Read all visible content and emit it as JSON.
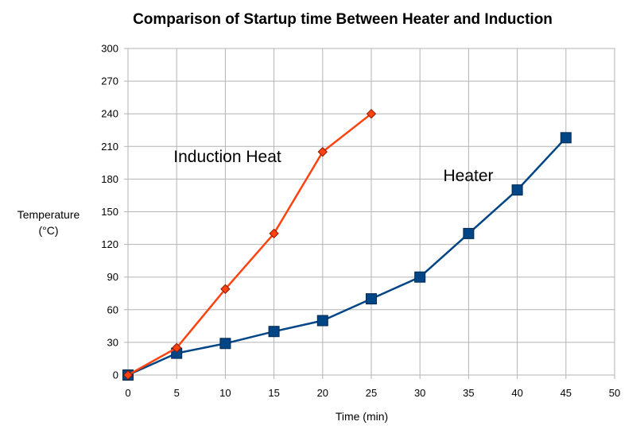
{
  "chart_data": {
    "type": "line",
    "title": "Comparison of Startup time Between Heater and Induction",
    "xlabel": "Time (min)",
    "ylabel_lines": [
      "Temperature",
      "(°C)"
    ],
    "xlim": [
      0,
      50
    ],
    "ylim": [
      0,
      300
    ],
    "x_ticks": [
      "0",
      "5",
      "10",
      "15",
      "20",
      "25",
      "30",
      "35",
      "40",
      "45",
      "50"
    ],
    "y_ticks": [
      "0",
      "30",
      "60",
      "90",
      "120",
      "150",
      "180",
      "210",
      "240",
      "270",
      "300"
    ],
    "grid": true,
    "legend": "none",
    "series": [
      {
        "name": "Induction Heat",
        "marker": "diamond",
        "color": "#ff420e",
        "x": [
          0,
          5,
          10,
          15,
          20,
          25
        ],
        "values": [
          0,
          25,
          79,
          130,
          205,
          240
        ]
      },
      {
        "name": "Heater",
        "marker": "square",
        "color": "#004586",
        "x": [
          0,
          5,
          10,
          15,
          20,
          25,
          30,
          35,
          40,
          45
        ],
        "values": [
          0,
          20,
          29,
          40,
          50,
          70,
          90,
          130,
          170,
          218
        ]
      }
    ],
    "annotations": [
      {
        "text": "Induction Heat",
        "series": "Induction Heat"
      },
      {
        "text": "Heater",
        "series": "Heater"
      }
    ]
  }
}
